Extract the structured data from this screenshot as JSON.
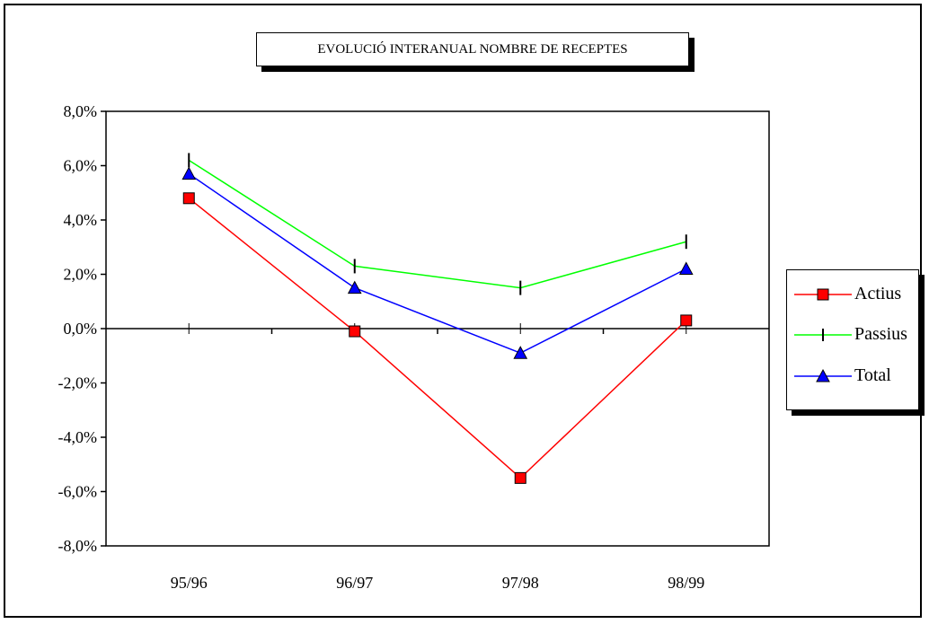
{
  "chart_data": {
    "type": "line",
    "title": "EVOLUCIÓ INTERANUAL NOMBRE  DE RECEPTES",
    "categories": [
      "95/96",
      "96/97",
      "97/98",
      "98/99"
    ],
    "ylim": [
      -8,
      8
    ],
    "yticks": [
      8,
      6,
      4,
      2,
      0,
      -2,
      -4,
      -6,
      -8
    ],
    "ytick_labels": [
      "8,0%",
      "6,0%",
      "4,0%",
      "2,0%",
      "0,0%",
      "-2,0%",
      "-4,0%",
      "-6,0%",
      "-8,0%"
    ],
    "grid": false,
    "legend_position": "right",
    "series": [
      {
        "name": "Actius",
        "values": [
          4.8,
          -0.1,
          -5.5,
          0.3
        ],
        "color": "#ff0000",
        "marker": "square",
        "marker_color": "#ff0000"
      },
      {
        "name": "Passius",
        "values": [
          6.2,
          2.3,
          1.5,
          3.2
        ],
        "color": "#00ff00",
        "marker": "bar",
        "marker_color": "#000000"
      },
      {
        "name": "Total",
        "values": [
          5.7,
          1.5,
          -0.9,
          2.2
        ],
        "color": "#0000ff",
        "marker": "triangle",
        "marker_color": "#0000ff"
      }
    ]
  }
}
